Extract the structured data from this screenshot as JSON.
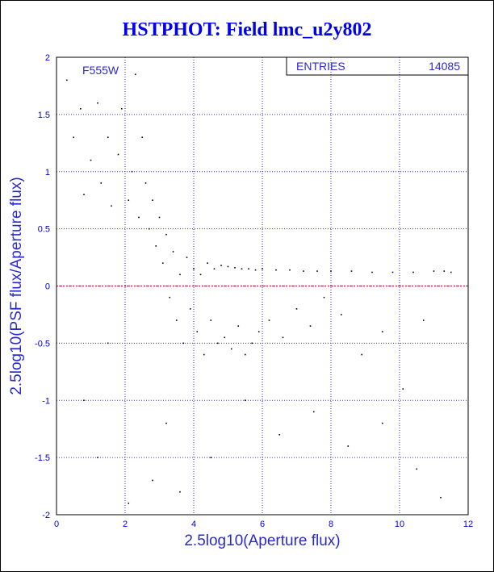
{
  "chart_data": {
    "type": "scatter",
    "title": "HSTPHOT: Field lmc_u2y802",
    "xlabel": "2.5log10(Aperture flux)",
    "ylabel": "2.5log10(PSF flux/Aperture flux)",
    "xlim": [
      0,
      12
    ],
    "ylim": [
      -2,
      2
    ],
    "xticks": [
      0,
      2,
      4,
      6,
      8,
      10,
      12
    ],
    "yticks": [
      -2,
      -1.5,
      -1,
      -0.5,
      0,
      0.5,
      1,
      1.5,
      2
    ],
    "grid": true,
    "reference_line": {
      "y": 0,
      "color": "#cc0000",
      "style": "dashed"
    },
    "filter_label": "F555W",
    "stats_box": {
      "entries_label": "ENTRIES",
      "entries_value": "14085"
    },
    "point_color": "#000000",
    "accent_color": "#0000ee",
    "series": [
      {
        "values_description": "",
        "points": [
          [
            0.3,
            1.8
          ],
          [
            0.5,
            1.3
          ],
          [
            0.7,
            1.55
          ],
          [
            0.8,
            0.8
          ],
          [
            1.0,
            1.1
          ],
          [
            1.2,
            1.6
          ],
          [
            1.3,
            0.9
          ],
          [
            1.5,
            1.3
          ],
          [
            1.6,
            0.7
          ],
          [
            1.8,
            1.15
          ],
          [
            1.9,
            1.55
          ],
          [
            2.1,
            0.75
          ],
          [
            2.2,
            1.0
          ],
          [
            2.3,
            1.85
          ],
          [
            2.4,
            0.6
          ],
          [
            2.5,
            1.3
          ],
          [
            2.6,
            0.9
          ],
          [
            2.7,
            0.5
          ],
          [
            2.8,
            0.75
          ],
          [
            2.9,
            0.35
          ],
          [
            3.0,
            0.6
          ],
          [
            3.1,
            0.2
          ],
          [
            3.2,
            0.45
          ],
          [
            3.3,
            -0.1
          ],
          [
            3.4,
            0.3
          ],
          [
            3.5,
            -0.3
          ],
          [
            3.6,
            0.1
          ],
          [
            3.7,
            -0.5
          ],
          [
            3.8,
            0.25
          ],
          [
            3.9,
            -0.2
          ],
          [
            4.0,
            0.15
          ],
          [
            4.1,
            -0.4
          ],
          [
            4.2,
            0.1
          ],
          [
            4.3,
            -0.6
          ],
          [
            4.4,
            0.2
          ],
          [
            4.5,
            -0.3
          ],
          [
            4.6,
            0.15
          ],
          [
            4.7,
            -0.5
          ],
          [
            4.8,
            0.18
          ],
          [
            4.9,
            -0.45
          ],
          [
            5.0,
            0.17
          ],
          [
            5.1,
            -0.55
          ],
          [
            5.2,
            0.16
          ],
          [
            5.3,
            -0.35
          ],
          [
            5.4,
            0.15
          ],
          [
            5.5,
            -0.6
          ],
          [
            5.6,
            0.15
          ],
          [
            5.7,
            -0.5
          ],
          [
            5.8,
            0.14
          ],
          [
            5.9,
            -0.4
          ],
          [
            6.0,
            0.15
          ],
          [
            6.2,
            -0.3
          ],
          [
            6.4,
            0.14
          ],
          [
            6.6,
            -0.45
          ],
          [
            6.8,
            0.14
          ],
          [
            7.0,
            -0.2
          ],
          [
            7.2,
            0.13
          ],
          [
            7.4,
            -0.35
          ],
          [
            7.6,
            0.13
          ],
          [
            7.8,
            -0.1
          ],
          [
            8.0,
            0.13
          ],
          [
            8.3,
            -0.25
          ],
          [
            8.6,
            0.13
          ],
          [
            8.9,
            -0.6
          ],
          [
            9.2,
            0.12
          ],
          [
            9.5,
            -0.4
          ],
          [
            9.8,
            0.12
          ],
          [
            10.1,
            -0.9
          ],
          [
            10.4,
            0.12
          ],
          [
            10.7,
            -0.3
          ],
          [
            11.0,
            0.13
          ],
          [
            11.3,
            0.13
          ],
          [
            11.5,
            0.12
          ],
          [
            3.2,
            -1.2
          ],
          [
            4.5,
            -1.5
          ],
          [
            5.5,
            -1.0
          ],
          [
            6.5,
            -1.3
          ],
          [
            7.5,
            -1.1
          ],
          [
            8.5,
            -1.4
          ],
          [
            2.8,
            -1.7
          ],
          [
            9.5,
            -1.2
          ],
          [
            10.5,
            -1.6
          ],
          [
            1.5,
            -0.5
          ],
          [
            0.8,
            -1.0
          ],
          [
            1.2,
            -1.5
          ],
          [
            2.1,
            -1.9
          ],
          [
            3.6,
            -1.8
          ],
          [
            11.2,
            -1.85
          ]
        ]
      }
    ]
  }
}
